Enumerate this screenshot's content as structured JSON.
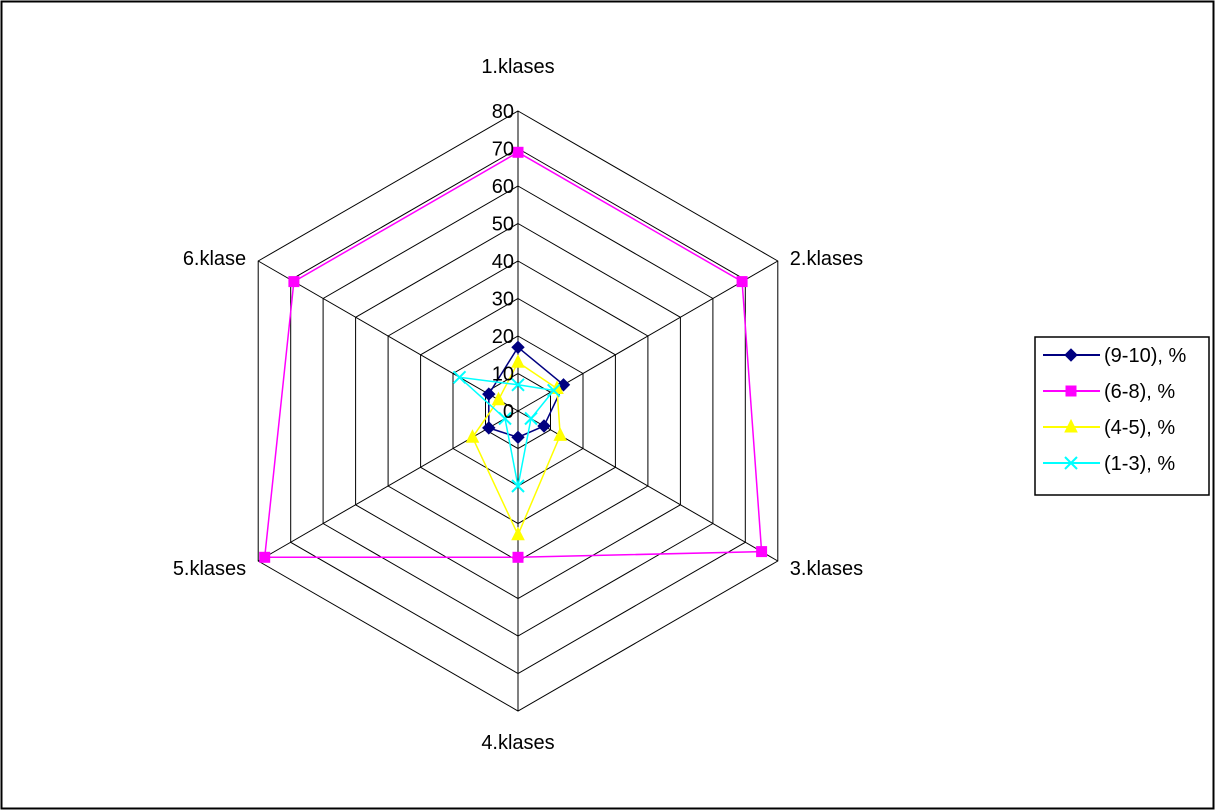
{
  "chart_data": {
    "type": "radar",
    "categories": [
      "1.klases",
      "2.klases",
      "3.klases",
      "4.klases",
      "5.klases",
      "6.klase"
    ],
    "axis_ticks": [
      "0",
      "10",
      "20",
      "30",
      "40",
      "50",
      "60",
      "70",
      "80"
    ],
    "rlim": [
      0,
      80
    ],
    "grid": true,
    "legend_position": "right",
    "series": [
      {
        "name": "(9-10), %",
        "color": "#000080",
        "marker": "diamond",
        "values": [
          17,
          14,
          8,
          7,
          9,
          9
        ]
      },
      {
        "name": "(6-8), %",
        "color": "#ff00ff",
        "marker": "square",
        "values": [
          69,
          69,
          75,
          39,
          78,
          69
        ]
      },
      {
        "name": "(4-5), %",
        "color": "#ffff00",
        "marker": "triangle",
        "values": [
          13,
          12,
          13,
          33,
          14,
          6
        ]
      },
      {
        "name": "(1-3), %",
        "color": "#00ffff",
        "marker": "x",
        "values": [
          7,
          11,
          4,
          20,
          4,
          18
        ]
      }
    ]
  }
}
